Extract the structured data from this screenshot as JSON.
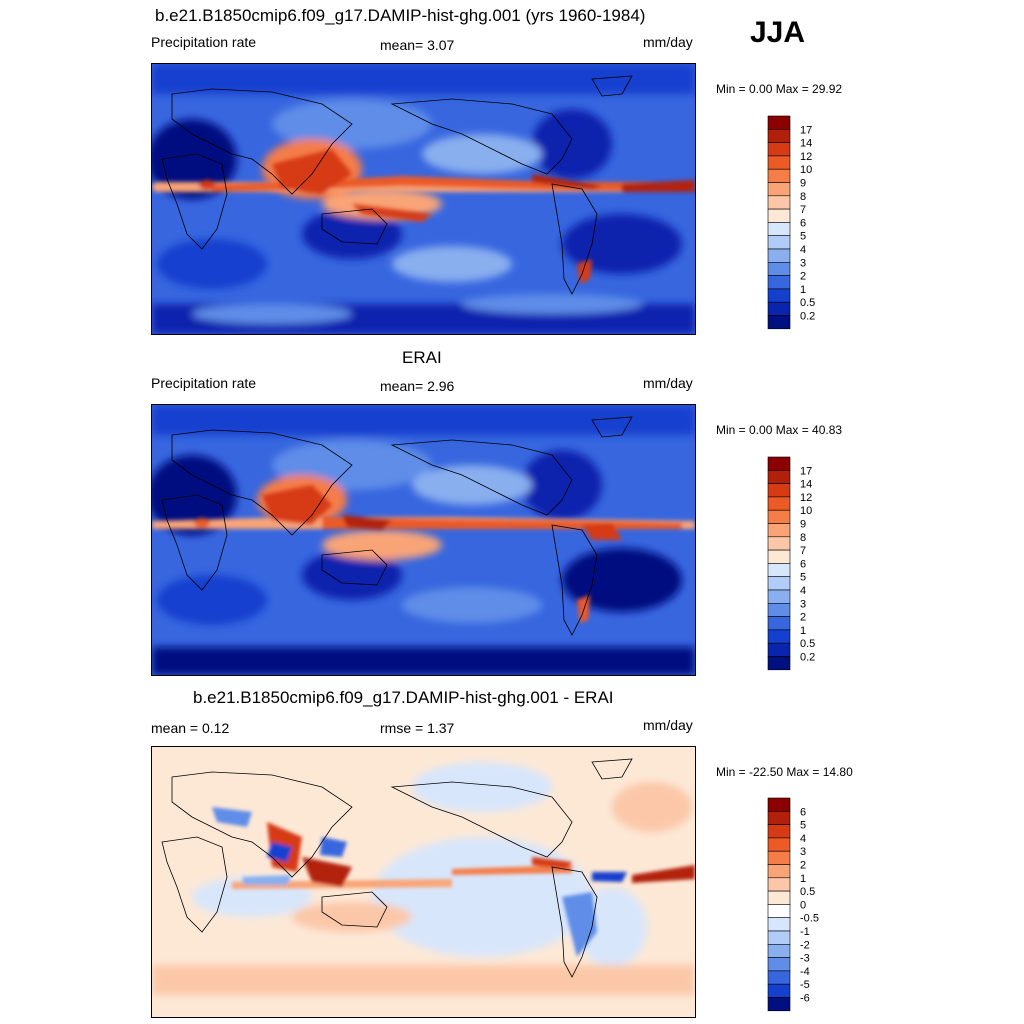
{
  "season": "JJA",
  "panels": [
    {
      "title": "b.e21.B1850cmip6.f09_g17.DAMIP-hist-ghg.001 (yrs 1960-1984)",
      "left_label": "Precipitation rate",
      "center_label": "mean=   3.07",
      "units": "mm/day",
      "minmax": "Min =   0.00 Max =  29.92",
      "colorbar": {
        "labels": [
          "17",
          "14",
          "12",
          "10",
          "9",
          "8",
          "7",
          "6",
          "5",
          "4",
          "3",
          "2",
          "1",
          "0.5",
          "0.2"
        ],
        "colors": [
          "#8b0000",
          "#b3200a",
          "#d63b14",
          "#ec5a26",
          "#f57d48",
          "#f9a477",
          "#fbc7a8",
          "#fde8d6",
          "#d8e6fb",
          "#b0ccf7",
          "#89afef",
          "#5f8de8",
          "#3766df",
          "#1440cf",
          "#0a24ad",
          "#001080"
        ]
      }
    },
    {
      "title": "ERAI",
      "left_label": "Precipitation rate",
      "center_label": "mean=   2.96",
      "units": "mm/day",
      "minmax": "Min =   0.00 Max =  40.83",
      "colorbar": {
        "labels": [
          "17",
          "14",
          "12",
          "10",
          "9",
          "8",
          "7",
          "6",
          "5",
          "4",
          "3",
          "2",
          "1",
          "0.5",
          "0.2"
        ],
        "colors": [
          "#8b0000",
          "#b3200a",
          "#d63b14",
          "#ec5a26",
          "#f57d48",
          "#f9a477",
          "#fbc7a8",
          "#fde8d6",
          "#d8e6fb",
          "#b0ccf7",
          "#89afef",
          "#5f8de8",
          "#3766df",
          "#1440cf",
          "#0a24ad",
          "#001080"
        ]
      }
    },
    {
      "title": "b.e21.B1850cmip6.f09_g17.DAMIP-hist-ghg.001 - ERAI",
      "left_label": "mean =   0.12",
      "center_label": "rmse =   1.37",
      "units": "mm/day",
      "minmax": "Min = -22.50 Max =  14.80",
      "colorbar": {
        "labels": [
          "6",
          "5",
          "4",
          "3",
          "2",
          "1",
          "0.5",
          "0",
          "-0.5",
          "-1",
          "-2",
          "-3",
          "-4",
          "-5",
          "-6"
        ],
        "colors": [
          "#8b0000",
          "#b3200a",
          "#d63b14",
          "#ec5a26",
          "#f57d48",
          "#f9a477",
          "#fbc7a8",
          "#fde8d6",
          "#ffffff",
          "#d8e6fb",
          "#b0ccf7",
          "#89afef",
          "#5f8de8",
          "#3766df",
          "#1440cf",
          "#001080"
        ]
      }
    }
  ]
}
